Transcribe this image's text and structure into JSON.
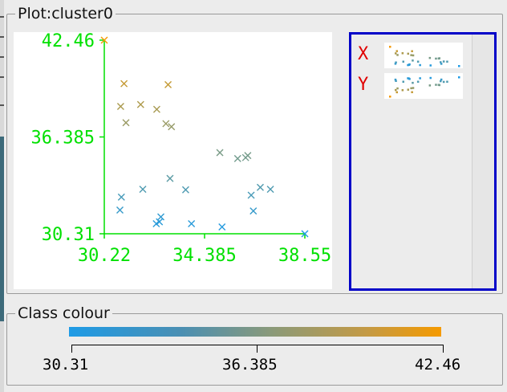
{
  "plot_panel": {
    "title": "Plot:cluster0"
  },
  "colour_panel": {
    "title": "Class colour",
    "scale_labels": [
      "30.31",
      "36.385",
      "42.46"
    ],
    "gradient_start_color": "#1e9be6",
    "gradient_end_color": "#f59a00"
  },
  "matrix": {
    "labels": [
      "X",
      "Y"
    ],
    "label_color": "#e00000",
    "border_color": "#0000c8"
  },
  "chart_data": {
    "type": "scatter",
    "xlim": [
      30.22,
      38.55
    ],
    "ylim": [
      30.31,
      42.46
    ],
    "x_ticks": [
      "30.22",
      "34.385",
      "38.55"
    ],
    "y_ticks": [
      "30.31",
      "36.385",
      "42.46"
    ],
    "axis_color": "#00e000",
    "marker": "x",
    "color_scale": {
      "min": 30.31,
      "max": 42.46,
      "min_color": "#1e9be6",
      "max_color": "#f59a00"
    },
    "points": [
      {
        "x": 30.22,
        "y": 42.46
      },
      {
        "x": 31.04,
        "y": 39.73
      },
      {
        "x": 32.87,
        "y": 39.67
      },
      {
        "x": 30.9,
        "y": 38.3
      },
      {
        "x": 31.73,
        "y": 38.42
      },
      {
        "x": 32.4,
        "y": 38.12
      },
      {
        "x": 31.12,
        "y": 37.28
      },
      {
        "x": 32.78,
        "y": 37.22
      },
      {
        "x": 33.01,
        "y": 37.03
      },
      {
        "x": 35.02,
        "y": 35.4
      },
      {
        "x": 35.76,
        "y": 35.03
      },
      {
        "x": 36.18,
        "y": 35.22
      },
      {
        "x": 36.09,
        "y": 35.09
      },
      {
        "x": 32.95,
        "y": 33.78
      },
      {
        "x": 31.82,
        "y": 33.1
      },
      {
        "x": 33.6,
        "y": 33.07
      },
      {
        "x": 30.93,
        "y": 32.61
      },
      {
        "x": 36.32,
        "y": 32.73
      },
      {
        "x": 36.7,
        "y": 33.22
      },
      {
        "x": 37.12,
        "y": 33.1
      },
      {
        "x": 30.87,
        "y": 31.8
      },
      {
        "x": 36.41,
        "y": 31.74
      },
      {
        "x": 32.57,
        "y": 31.37
      },
      {
        "x": 32.51,
        "y": 31.06
      },
      {
        "x": 32.38,
        "y": 30.94
      },
      {
        "x": 33.84,
        "y": 30.94
      },
      {
        "x": 35.11,
        "y": 30.74
      },
      {
        "x": 38.55,
        "y": 30.31
      }
    ]
  }
}
